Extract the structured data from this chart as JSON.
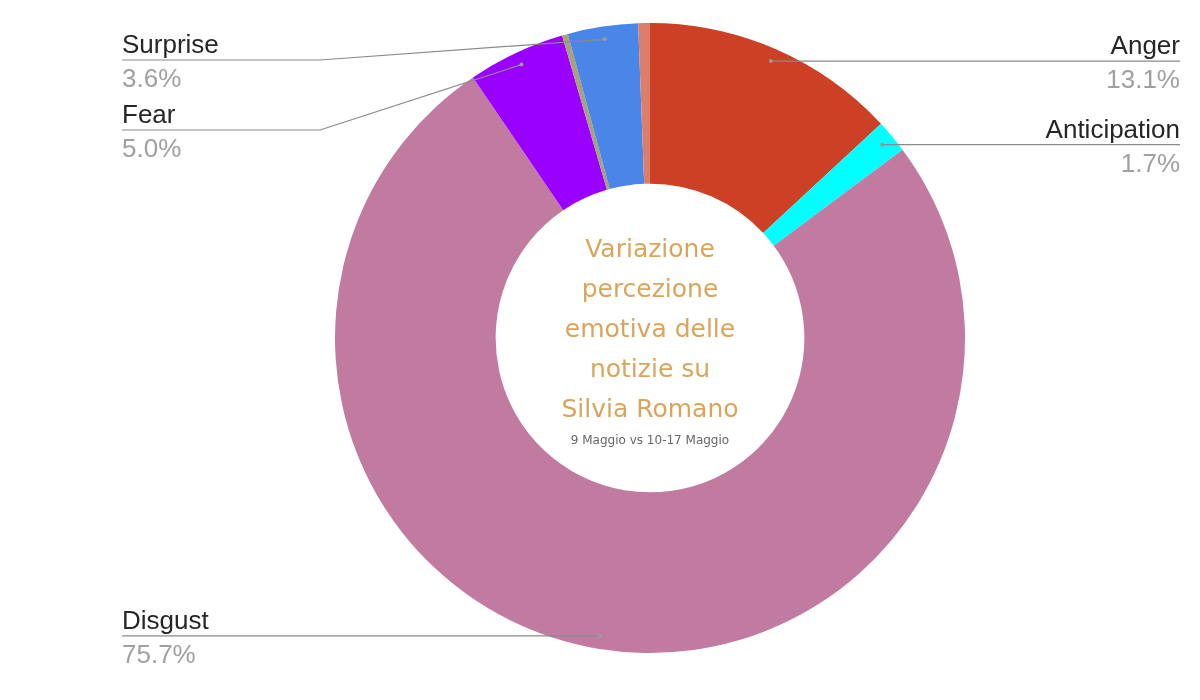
{
  "chart_data": {
    "type": "donut",
    "title": "Variazione percezione emotiva delle notizie su Silvia Romano",
    "subtitle": "9 Maggio vs 10-17 Maggio",
    "categories": [
      "Anger",
      "Anticipation",
      "Disgust",
      "Fear",
      null,
      "Surprise",
      null
    ],
    "values": [
      13.1,
      1.7,
      75.7,
      5.0,
      0.3,
      3.6,
      0.6
    ],
    "colors": [
      "#cc4125",
      "#00ffff",
      "#c27ba0",
      "#9900ff",
      "#a8a27a",
      "#4a86e8",
      "#dd7e6b"
    ],
    "value_labels": [
      "13.1%",
      "1.7%",
      "75.7%",
      "5.0%",
      null,
      "3.6%",
      null
    ]
  }
}
